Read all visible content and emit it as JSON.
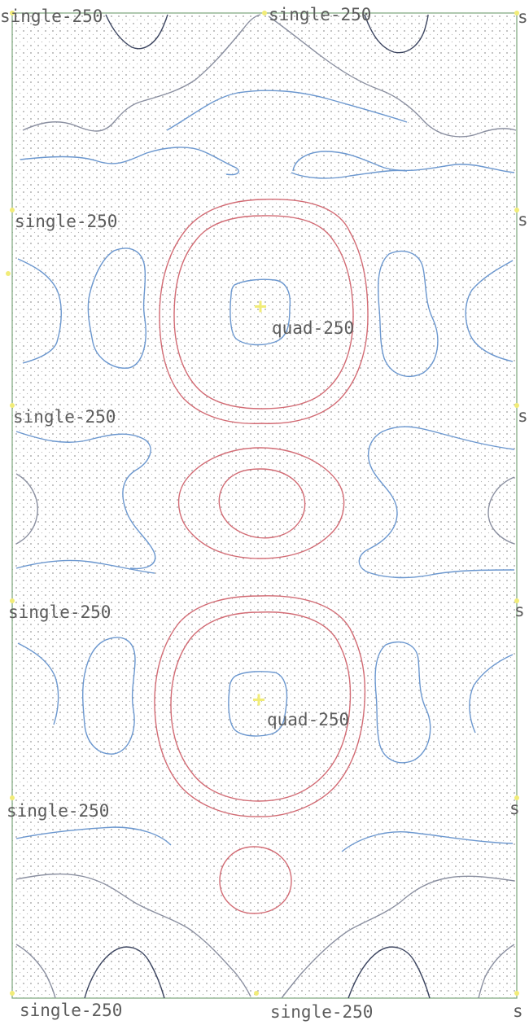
{
  "labels": {
    "single": "single-250",
    "quad": "quad-250",
    "clipped": "s"
  },
  "colors": {
    "frame": "#7aa57a",
    "positive_contour": "#d26b74",
    "negative_contour": "#6b97cf",
    "zero_contour": "#8a8fa0",
    "dark_contour": "#3c4560",
    "source_marker": "#f1ec78",
    "dot_grid": "#9a9a9a"
  }
}
